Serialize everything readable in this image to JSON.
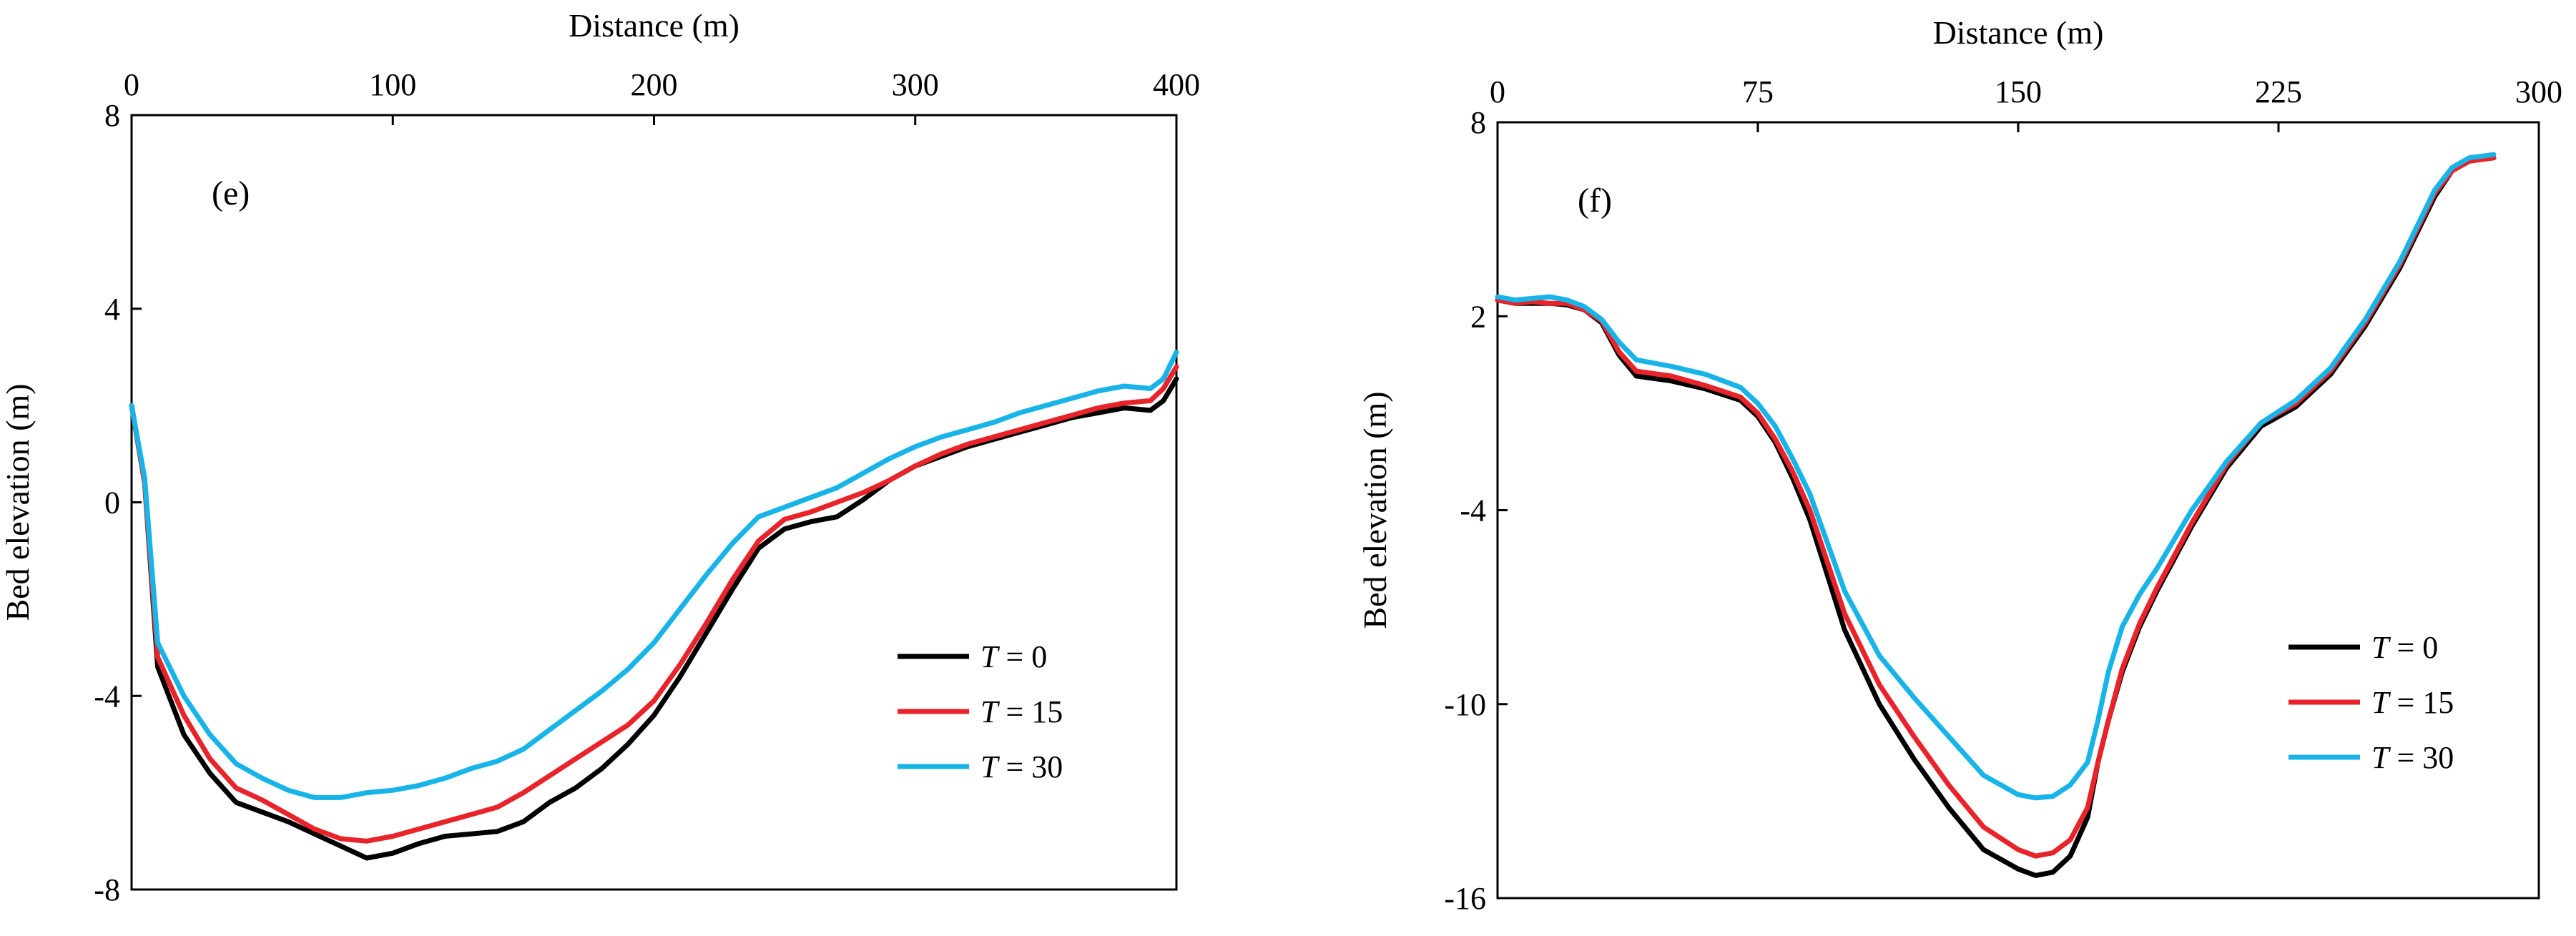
{
  "chart_data": [
    {
      "type": "line",
      "panel_label": "(e)",
      "xlabel": "Distance (m)",
      "ylabel": "Bed elevation (m)",
      "xlim": [
        0,
        400
      ],
      "ylim": [
        -8,
        8
      ],
      "xticks": [
        0,
        100,
        200,
        300,
        400
      ],
      "yticks": [
        -8,
        -4,
        0,
        4,
        8
      ],
      "xtick_labels": [
        "0",
        "100",
        "200",
        "300",
        "400"
      ],
      "ytick_labels": [
        "-8",
        "-4",
        "0",
        "4",
        "8"
      ],
      "x_axis_position": "top",
      "legend_position": "bottom-right",
      "series": [
        {
          "name": "T = 0",
          "legend_var": "T",
          "legend_rest": " = 0",
          "color": "#000000",
          "points": [
            [
              0,
              2.0
            ],
            [
              5,
              0.4
            ],
            [
              10,
              -3.4
            ],
            [
              20,
              -4.8
            ],
            [
              30,
              -5.6
            ],
            [
              40,
              -6.2
            ],
            [
              50,
              -6.4
            ],
            [
              60,
              -6.6
            ],
            [
              70,
              -6.85
            ],
            [
              80,
              -7.1
            ],
            [
              90,
              -7.35
            ],
            [
              100,
              -7.25
            ],
            [
              110,
              -7.05
            ],
            [
              120,
              -6.9
            ],
            [
              130,
              -6.85
            ],
            [
              140,
              -6.8
            ],
            [
              150,
              -6.6
            ],
            [
              160,
              -6.2
            ],
            [
              170,
              -5.9
            ],
            [
              180,
              -5.5
            ],
            [
              190,
              -5.0
            ],
            [
              200,
              -4.4
            ],
            [
              210,
              -3.6
            ],
            [
              220,
              -2.7
            ],
            [
              230,
              -1.8
            ],
            [
              240,
              -0.95
            ],
            [
              250,
              -0.55
            ],
            [
              260,
              -0.4
            ],
            [
              270,
              -0.3
            ],
            [
              280,
              0.05
            ],
            [
              290,
              0.45
            ],
            [
              300,
              0.75
            ],
            [
              310,
              0.95
            ],
            [
              320,
              1.15
            ],
            [
              330,
              1.3
            ],
            [
              340,
              1.45
            ],
            [
              350,
              1.6
            ],
            [
              360,
              1.75
            ],
            [
              370,
              1.85
            ],
            [
              380,
              1.95
            ],
            [
              390,
              1.9
            ],
            [
              395,
              2.1
            ],
            [
              400,
              2.55
            ]
          ]
        },
        {
          "name": "T = 15",
          "legend_var": "T",
          "legend_rest": " = 15",
          "color": "#e8232a",
          "points": [
            [
              0,
              2.0
            ],
            [
              5,
              0.4
            ],
            [
              10,
              -3.2
            ],
            [
              20,
              -4.4
            ],
            [
              30,
              -5.3
            ],
            [
              40,
              -5.9
            ],
            [
              50,
              -6.15
            ],
            [
              60,
              -6.45
            ],
            [
              70,
              -6.75
            ],
            [
              80,
              -6.95
            ],
            [
              90,
              -7.0
            ],
            [
              100,
              -6.9
            ],
            [
              110,
              -6.75
            ],
            [
              120,
              -6.6
            ],
            [
              130,
              -6.45
            ],
            [
              140,
              -6.3
            ],
            [
              150,
              -6.0
            ],
            [
              160,
              -5.65
            ],
            [
              170,
              -5.3
            ],
            [
              180,
              -4.95
            ],
            [
              190,
              -4.6
            ],
            [
              200,
              -4.1
            ],
            [
              210,
              -3.35
            ],
            [
              220,
              -2.5
            ],
            [
              230,
              -1.6
            ],
            [
              240,
              -0.8
            ],
            [
              250,
              -0.35
            ],
            [
              260,
              -0.2
            ],
            [
              270,
              0.0
            ],
            [
              280,
              0.2
            ],
            [
              290,
              0.45
            ],
            [
              300,
              0.75
            ],
            [
              310,
              1.0
            ],
            [
              320,
              1.2
            ],
            [
              330,
              1.35
            ],
            [
              340,
              1.5
            ],
            [
              350,
              1.65
            ],
            [
              360,
              1.8
            ],
            [
              370,
              1.95
            ],
            [
              380,
              2.05
            ],
            [
              390,
              2.1
            ],
            [
              395,
              2.35
            ],
            [
              400,
              2.8
            ]
          ]
        },
        {
          "name": "T = 30",
          "legend_var": "T",
          "legend_rest": " = 30",
          "color": "#18b4e8",
          "points": [
            [
              0,
              2.0
            ],
            [
              5,
              0.5
            ],
            [
              10,
              -2.9
            ],
            [
              20,
              -4.0
            ],
            [
              30,
              -4.8
            ],
            [
              40,
              -5.4
            ],
            [
              50,
              -5.7
            ],
            [
              60,
              -5.95
            ],
            [
              70,
              -6.1
            ],
            [
              80,
              -6.1
            ],
            [
              90,
              -6.0
            ],
            [
              100,
              -5.95
            ],
            [
              110,
              -5.85
            ],
            [
              120,
              -5.7
            ],
            [
              130,
              -5.5
            ],
            [
              140,
              -5.35
            ],
            [
              150,
              -5.1
            ],
            [
              160,
              -4.7
            ],
            [
              170,
              -4.3
            ],
            [
              180,
              -3.9
            ],
            [
              190,
              -3.45
            ],
            [
              200,
              -2.9
            ],
            [
              210,
              -2.2
            ],
            [
              220,
              -1.5
            ],
            [
              230,
              -0.85
            ],
            [
              240,
              -0.3
            ],
            [
              250,
              -0.1
            ],
            [
              260,
              0.1
            ],
            [
              270,
              0.3
            ],
            [
              280,
              0.6
            ],
            [
              290,
              0.9
            ],
            [
              300,
              1.15
            ],
            [
              310,
              1.35
            ],
            [
              320,
              1.5
            ],
            [
              330,
              1.65
            ],
            [
              340,
              1.85
            ],
            [
              350,
              2.0
            ],
            [
              360,
              2.15
            ],
            [
              370,
              2.3
            ],
            [
              380,
              2.4
            ],
            [
              390,
              2.35
            ],
            [
              395,
              2.55
            ],
            [
              400,
              3.1
            ]
          ]
        }
      ]
    },
    {
      "type": "line",
      "panel_label": "(f)",
      "xlabel": "Distance (m)",
      "ylabel": "Bed elevation (m)",
      "xlim": [
        0,
        300
      ],
      "ylim": [
        -16,
        8
      ],
      "xticks": [
        0,
        75,
        150,
        225,
        300
      ],
      "yticks": [
        -16,
        -10,
        -4,
        2,
        8
      ],
      "xtick_labels": [
        "0",
        "75",
        "150",
        "225",
        "300"
      ],
      "ytick_labels": [
        "-16",
        "-10",
        "-4",
        "2",
        "8"
      ],
      "x_axis_position": "top",
      "legend_position": "bottom-right",
      "series": [
        {
          "name": "T = 0",
          "legend_var": "T",
          "legend_rest": " = 0",
          "color": "#000000",
          "points": [
            [
              0,
              2.5
            ],
            [
              5,
              2.4
            ],
            [
              10,
              2.4
            ],
            [
              15,
              2.4
            ],
            [
              20,
              2.35
            ],
            [
              25,
              2.2
            ],
            [
              30,
              1.8
            ],
            [
              35,
              0.8
            ],
            [
              40,
              0.15
            ],
            [
              50,
              0.0
            ],
            [
              60,
              -0.25
            ],
            [
              70,
              -0.6
            ],
            [
              75,
              -1.1
            ],
            [
              80,
              -1.9
            ],
            [
              85,
              -3.0
            ],
            [
              90,
              -4.3
            ],
            [
              95,
              -6.0
            ],
            [
              100,
              -7.7
            ],
            [
              110,
              -10.0
            ],
            [
              120,
              -11.7
            ],
            [
              130,
              -13.2
            ],
            [
              140,
              -14.5
            ],
            [
              150,
              -15.1
            ],
            [
              155,
              -15.3
            ],
            [
              160,
              -15.2
            ],
            [
              165,
              -14.7
            ],
            [
              170,
              -13.5
            ],
            [
              173,
              -11.8
            ],
            [
              176,
              -10.5
            ],
            [
              180,
              -9.0
            ],
            [
              185,
              -7.6
            ],
            [
              190,
              -6.5
            ],
            [
              200,
              -4.5
            ],
            [
              210,
              -2.7
            ],
            [
              220,
              -1.4
            ],
            [
              230,
              -0.8
            ],
            [
              240,
              0.2
            ],
            [
              250,
              1.7
            ],
            [
              260,
              3.5
            ],
            [
              270,
              5.7
            ],
            [
              275,
              6.5
            ],
            [
              280,
              6.8
            ],
            [
              287,
              6.9
            ]
          ]
        },
        {
          "name": "T = 15",
          "legend_var": "T",
          "legend_rest": " = 15",
          "color": "#e8232a",
          "points": [
            [
              0,
              2.5
            ],
            [
              5,
              2.4
            ],
            [
              10,
              2.45
            ],
            [
              15,
              2.4
            ],
            [
              20,
              2.4
            ],
            [
              25,
              2.2
            ],
            [
              30,
              1.85
            ],
            [
              35,
              0.9
            ],
            [
              40,
              0.3
            ],
            [
              50,
              0.15
            ],
            [
              60,
              -0.15
            ],
            [
              70,
              -0.5
            ],
            [
              75,
              -1.0
            ],
            [
              80,
              -1.8
            ],
            [
              85,
              -2.8
            ],
            [
              90,
              -4.0
            ],
            [
              95,
              -5.6
            ],
            [
              100,
              -7.2
            ],
            [
              110,
              -9.4
            ],
            [
              120,
              -11.0
            ],
            [
              130,
              -12.5
            ],
            [
              140,
              -13.8
            ],
            [
              150,
              -14.5
            ],
            [
              155,
              -14.7
            ],
            [
              160,
              -14.6
            ],
            [
              165,
              -14.2
            ],
            [
              170,
              -13.2
            ],
            [
              173,
              -11.8
            ],
            [
              176,
              -10.5
            ],
            [
              180,
              -8.9
            ],
            [
              185,
              -7.5
            ],
            [
              190,
              -6.4
            ],
            [
              200,
              -4.4
            ],
            [
              210,
              -2.6
            ],
            [
              220,
              -1.3
            ],
            [
              230,
              -0.7
            ],
            [
              240,
              0.3
            ],
            [
              250,
              1.8
            ],
            [
              260,
              3.6
            ],
            [
              270,
              5.8
            ],
            [
              275,
              6.5
            ],
            [
              280,
              6.8
            ],
            [
              287,
              6.9
            ]
          ]
        },
        {
          "name": "T = 30",
          "legend_var": "T",
          "legend_rest": " = 30",
          "color": "#18b4e8",
          "points": [
            [
              0,
              2.6
            ],
            [
              5,
              2.5
            ],
            [
              10,
              2.55
            ],
            [
              15,
              2.6
            ],
            [
              20,
              2.5
            ],
            [
              25,
              2.3
            ],
            [
              30,
              1.9
            ],
            [
              35,
              1.2
            ],
            [
              40,
              0.65
            ],
            [
              50,
              0.45
            ],
            [
              60,
              0.2
            ],
            [
              70,
              -0.2
            ],
            [
              75,
              -0.7
            ],
            [
              80,
              -1.4
            ],
            [
              85,
              -2.4
            ],
            [
              90,
              -3.5
            ],
            [
              95,
              -5.0
            ],
            [
              100,
              -6.5
            ],
            [
              110,
              -8.5
            ],
            [
              120,
              -9.8
            ],
            [
              130,
              -11.0
            ],
            [
              140,
              -12.2
            ],
            [
              150,
              -12.8
            ],
            [
              155,
              -12.9
            ],
            [
              160,
              -12.85
            ],
            [
              165,
              -12.5
            ],
            [
              170,
              -11.8
            ],
            [
              173,
              -10.5
            ],
            [
              176,
              -9.0
            ],
            [
              180,
              -7.6
            ],
            [
              185,
              -6.6
            ],
            [
              190,
              -5.8
            ],
            [
              200,
              -4.0
            ],
            [
              210,
              -2.5
            ],
            [
              220,
              -1.3
            ],
            [
              230,
              -0.6
            ],
            [
              240,
              0.4
            ],
            [
              250,
              1.9
            ],
            [
              260,
              3.7
            ],
            [
              270,
              5.9
            ],
            [
              275,
              6.6
            ],
            [
              280,
              6.9
            ],
            [
              287,
              7.0
            ]
          ]
        }
      ]
    }
  ]
}
